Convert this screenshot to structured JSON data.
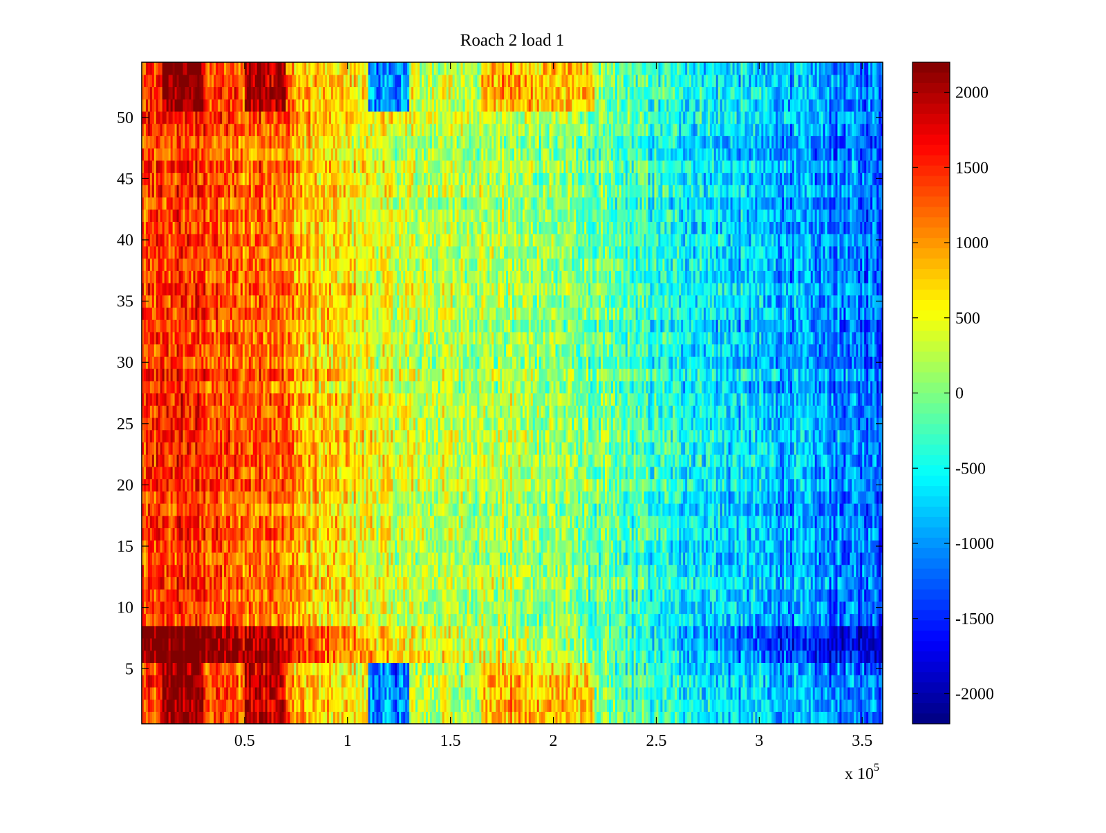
{
  "chart_data": {
    "type": "heatmap",
    "title": "Roach 2 load 1",
    "xlabel": "",
    "ylabel": "",
    "x_exponent_label": "x 10",
    "x_exponent_power": "5",
    "xlim": [
      0,
      360000
    ],
    "ylim": [
      0.5,
      54.5
    ],
    "x_ticks": [
      {
        "value": 50000,
        "label": "0.5"
      },
      {
        "value": 100000,
        "label": "1"
      },
      {
        "value": 150000,
        "label": "1.5"
      },
      {
        "value": 200000,
        "label": "2"
      },
      {
        "value": 250000,
        "label": "2.5"
      },
      {
        "value": 300000,
        "label": "3"
      },
      {
        "value": 350000,
        "label": "3.5"
      }
    ],
    "y_ticks": [
      {
        "value": 5,
        "label": "5"
      },
      {
        "value": 10,
        "label": "10"
      },
      {
        "value": 15,
        "label": "15"
      },
      {
        "value": 20,
        "label": "20"
      },
      {
        "value": 25,
        "label": "25"
      },
      {
        "value": 30,
        "label": "30"
      },
      {
        "value": 35,
        "label": "35"
      },
      {
        "value": 40,
        "label": "40"
      },
      {
        "value": 45,
        "label": "45"
      },
      {
        "value": 50,
        "label": "50"
      }
    ],
    "rows": 54,
    "columns_approx": 360,
    "colormap": "jet",
    "colorbar": {
      "range": [
        -2200,
        2200
      ],
      "ticks": [
        {
          "value": 2000,
          "label": "2000"
        },
        {
          "value": 1500,
          "label": "1500"
        },
        {
          "value": 1000,
          "label": "1000"
        },
        {
          "value": 500,
          "label": "500"
        },
        {
          "value": 0,
          "label": "0"
        },
        {
          "value": -500,
          "label": "-500"
        },
        {
          "value": -1000,
          "label": "-1000"
        },
        {
          "value": -1500,
          "label": "-1500"
        },
        {
          "value": -2000,
          "label": "-2000"
        }
      ]
    },
    "value_trend_by_x": [
      {
        "x": 0,
        "value": 1300
      },
      {
        "x": 20000,
        "value": 1500
      },
      {
        "x": 50000,
        "value": 1200
      },
      {
        "x": 65000,
        "value": 1300
      },
      {
        "x": 80000,
        "value": 800
      },
      {
        "x": 100000,
        "value": 600
      },
      {
        "x": 130000,
        "value": 300
      },
      {
        "x": 160000,
        "value": 250
      },
      {
        "x": 200000,
        "value": 100
      },
      {
        "x": 220000,
        "value": -100
      },
      {
        "x": 250000,
        "value": -400
      },
      {
        "x": 300000,
        "value": -800
      },
      {
        "x": 360000,
        "value": -1200
      }
    ],
    "row_bands": [
      {
        "y_from": 6,
        "y_to": 8,
        "note": "strong band",
        "amplitude_factor": 1.6
      },
      {
        "y_from": 1,
        "y_to": 5,
        "note": "striped bottom rows"
      },
      {
        "y_from": 51,
        "y_to": 54,
        "note": "striped top rows"
      }
    ],
    "column_features": [
      {
        "x_from": 110000,
        "x_to": 130000,
        "value": -1700,
        "rows": "1-5, 51-54"
      },
      {
        "x_from": 165000,
        "x_to": 220000,
        "value": 1000,
        "rows": "1-5, 51-54"
      },
      {
        "x_from": 10000,
        "x_to": 30000,
        "value": 1900,
        "rows": "1-5, 51-54"
      },
      {
        "x_from": 50000,
        "x_to": 70000,
        "value": 1800,
        "rows": "1-5, 51-54"
      }
    ]
  }
}
